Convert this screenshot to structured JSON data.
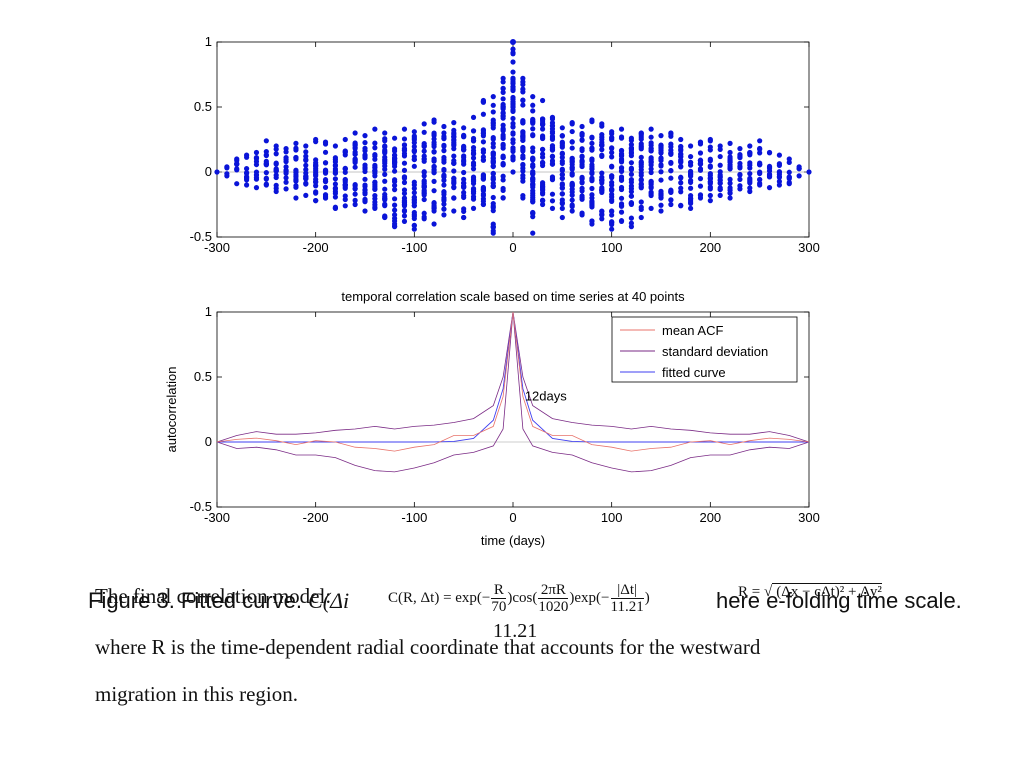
{
  "chart_data": [
    {
      "type": "scatter",
      "title": "",
      "xlabel": "",
      "ylabel": "",
      "xlim": [
        -300,
        300
      ],
      "ylim": [
        -0.5,
        1
      ],
      "xticks": [
        "-300",
        "-200",
        "-100",
        "0",
        "100",
        "200",
        "300"
      ],
      "yticks": [
        "-0.5",
        "0",
        "0.5",
        "1"
      ],
      "color": "#0a14d8",
      "grid": false,
      "point_at_origin": {
        "x": 0,
        "y": 1
      },
      "note": "Autocorrelation samples at 10-day lag steps; each lag shows a vertical column of points whose spread grows toward lag 0.",
      "columns": [
        {
          "x": -300,
          "min": 0,
          "max": 0
        },
        {
          "x": -290,
          "min": -0.03,
          "max": 0.04
        },
        {
          "x": -280,
          "min": -0.09,
          "max": 0.1
        },
        {
          "x": -270,
          "min": -0.1,
          "max": 0.13
        },
        {
          "x": -260,
          "min": -0.12,
          "max": 0.15
        },
        {
          "x": -250,
          "min": -0.1,
          "max": 0.24
        },
        {
          "x": -240,
          "min": -0.15,
          "max": 0.2
        },
        {
          "x": -230,
          "min": -0.13,
          "max": 0.18
        },
        {
          "x": -220,
          "min": -0.2,
          "max": 0.22
        },
        {
          "x": -210,
          "min": -0.18,
          "max": 0.2
        },
        {
          "x": -200,
          "min": -0.22,
          "max": 0.25
        },
        {
          "x": -190,
          "min": -0.2,
          "max": 0.23
        },
        {
          "x": -180,
          "min": -0.28,
          "max": 0.2
        },
        {
          "x": -170,
          "min": -0.26,
          "max": 0.25
        },
        {
          "x": -160,
          "min": -0.25,
          "max": 0.3
        },
        {
          "x": -150,
          "min": -0.3,
          "max": 0.28
        },
        {
          "x": -140,
          "min": -0.28,
          "max": 0.33
        },
        {
          "x": -130,
          "min": -0.35,
          "max": 0.3
        },
        {
          "x": -120,
          "min": -0.42,
          "max": 0.26
        },
        {
          "x": -110,
          "min": -0.38,
          "max": 0.33
        },
        {
          "x": -100,
          "min": -0.44,
          "max": 0.31
        },
        {
          "x": -90,
          "min": -0.36,
          "max": 0.37
        },
        {
          "x": -80,
          "min": -0.4,
          "max": 0.4
        },
        {
          "x": -70,
          "min": -0.33,
          "max": 0.35
        },
        {
          "x": -60,
          "min": -0.3,
          "max": 0.38
        },
        {
          "x": -50,
          "min": -0.35,
          "max": 0.34
        },
        {
          "x": -40,
          "min": -0.28,
          "max": 0.42
        },
        {
          "x": -30,
          "min": -0.25,
          "max": 0.55
        },
        {
          "x": -20,
          "min": -0.47,
          "max": 0.58
        },
        {
          "x": -10,
          "min": -0.2,
          "max": 0.72
        },
        {
          "x": 0,
          "min": 0,
          "max": 1
        },
        {
          "x": 10,
          "min": -0.2,
          "max": 0.72
        },
        {
          "x": 20,
          "min": -0.47,
          "max": 0.58
        },
        {
          "x": 30,
          "min": -0.25,
          "max": 0.55
        },
        {
          "x": 40,
          "min": -0.28,
          "max": 0.42
        },
        {
          "x": 50,
          "min": -0.35,
          "max": 0.34
        },
        {
          "x": 60,
          "min": -0.3,
          "max": 0.38
        },
        {
          "x": 70,
          "min": -0.33,
          "max": 0.35
        },
        {
          "x": 80,
          "min": -0.4,
          "max": 0.4
        },
        {
          "x": 90,
          "min": -0.36,
          "max": 0.37
        },
        {
          "x": 100,
          "min": -0.44,
          "max": 0.31
        },
        {
          "x": 110,
          "min": -0.38,
          "max": 0.33
        },
        {
          "x": 120,
          "min": -0.42,
          "max": 0.26
        },
        {
          "x": 130,
          "min": -0.35,
          "max": 0.3
        },
        {
          "x": 140,
          "min": -0.28,
          "max": 0.33
        },
        {
          "x": 150,
          "min": -0.3,
          "max": 0.28
        },
        {
          "x": 160,
          "min": -0.25,
          "max": 0.3
        },
        {
          "x": 170,
          "min": -0.26,
          "max": 0.25
        },
        {
          "x": 180,
          "min": -0.28,
          "max": 0.2
        },
        {
          "x": 190,
          "min": -0.2,
          "max": 0.23
        },
        {
          "x": 200,
          "min": -0.22,
          "max": 0.25
        },
        {
          "x": 210,
          "min": -0.18,
          "max": 0.2
        },
        {
          "x": 220,
          "min": -0.2,
          "max": 0.22
        },
        {
          "x": 230,
          "min": -0.13,
          "max": 0.18
        },
        {
          "x": 240,
          "min": -0.15,
          "max": 0.2
        },
        {
          "x": 250,
          "min": -0.1,
          "max": 0.24
        },
        {
          "x": 260,
          "min": -0.12,
          "max": 0.15
        },
        {
          "x": 270,
          "min": -0.1,
          "max": 0.13
        },
        {
          "x": 280,
          "min": -0.09,
          "max": 0.1
        },
        {
          "x": 290,
          "min": -0.03,
          "max": 0.04
        },
        {
          "x": 300,
          "min": 0,
          "max": 0
        }
      ]
    },
    {
      "type": "line",
      "title": "temporal correlation scale based on time series at 40 points",
      "xlabel": "time (days)",
      "ylabel": "autocorrelation",
      "xlim": [
        -300,
        300
      ],
      "ylim": [
        -0.5,
        1
      ],
      "xticks": [
        "-300",
        "-200",
        "-100",
        "0",
        "100",
        "200",
        "300"
      ],
      "yticks": [
        "-0.5",
        "0",
        "0.5",
        "1"
      ],
      "legend": "top-right",
      "annotation": {
        "text": "12days",
        "x": 12,
        "y": 0.35
      },
      "x": [
        -300,
        -280,
        -260,
        -240,
        -220,
        -200,
        -180,
        -160,
        -140,
        -120,
        -100,
        -80,
        -60,
        -40,
        -20,
        -10,
        0,
        10,
        20,
        40,
        60,
        80,
        100,
        120,
        140,
        160,
        180,
        200,
        220,
        240,
        260,
        280,
        300
      ],
      "series": [
        {
          "name": "mean ACF",
          "color": "#e8736b",
          "values": [
            0,
            0.02,
            0.03,
            0.01,
            -0.02,
            0.01,
            0,
            -0.04,
            -0.05,
            -0.07,
            -0.04,
            -0.02,
            0.05,
            0.05,
            0.12,
            0.35,
            1,
            0.35,
            0.12,
            0.05,
            0.05,
            -0.02,
            -0.04,
            -0.07,
            -0.05,
            -0.04,
            0,
            0.01,
            -0.02,
            0.01,
            0.03,
            0.02,
            0
          ]
        },
        {
          "name": "standard deviation",
          "color": "#7a2a85",
          "values_upper": [
            0,
            0.05,
            0.08,
            0.06,
            0.06,
            0.07,
            0.09,
            0.1,
            0.12,
            0.1,
            0.12,
            0.13,
            0.15,
            0.18,
            0.28,
            0.5,
            1,
            0.5,
            0.28,
            0.18,
            0.15,
            0.13,
            0.12,
            0.1,
            0.12,
            0.1,
            0.09,
            0.07,
            0.06,
            0.06,
            0.08,
            0.05,
            0
          ],
          "values_lower": [
            0,
            -0.05,
            -0.04,
            -0.06,
            -0.1,
            -0.1,
            -0.12,
            -0.18,
            -0.22,
            -0.23,
            -0.2,
            -0.16,
            -0.1,
            -0.08,
            -0.03,
            0.1,
            1,
            0.1,
            -0.03,
            -0.08,
            -0.1,
            -0.16,
            -0.2,
            -0.23,
            -0.22,
            -0.18,
            -0.12,
            -0.1,
            -0.1,
            -0.06,
            -0.04,
            -0.05,
            0
          ]
        },
        {
          "name": "fitted curve",
          "color": "#3f3ff0",
          "values": [
            0,
            0,
            0,
            0,
            0,
            0,
            0,
            0,
            0,
            0,
            0,
            0.001,
            0.005,
            0.028,
            0.168,
            0.41,
            1,
            0.41,
            0.168,
            0.028,
            0.005,
            0.001,
            0,
            0,
            0,
            0,
            0,
            0,
            0,
            0,
            0,
            0,
            0
          ]
        }
      ]
    }
  ],
  "caption": {
    "prefix": "Figure 3. Fitted curve.",
    "math_start": "C(Δi",
    "tail": "here e-folding time scale."
  },
  "formula": {
    "lhs": "C(R, Δt) = exp(−",
    "f1_num": "R",
    "f1_den": "70",
    "mid1": ")cos(",
    "f2_num": "2πR",
    "f2_den": "1020",
    "mid2": ")exp(−",
    "f3_num": "|Δt|",
    "f3_den": "11.21",
    "end": ")"
  },
  "radical": {
    "lhs": "R =",
    "expr": "(Δx − cΔt)² + Δy²"
  },
  "fragment_1121": "11.21",
  "paragraph": {
    "line1": "The final correlation model:",
    "line2": "where R is the time-dependent radial coordinate that accounts for the westward",
    "line3": "migration in this region."
  }
}
